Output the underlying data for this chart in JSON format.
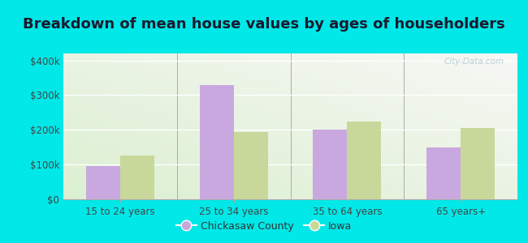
{
  "title": "Breakdown of mean house values by ages of householders",
  "categories": [
    "15 to 24 years",
    "25 to 34 years",
    "35 to 64 years",
    "65 years+"
  ],
  "chickasaw_values": [
    95000,
    330000,
    200000,
    150000
  ],
  "iowa_values": [
    125000,
    193000,
    225000,
    205000
  ],
  "chickasaw_color": "#c9a8e0",
  "iowa_color": "#c8d89a",
  "ylim": [
    0,
    420000
  ],
  "yticks": [
    0,
    100000,
    200000,
    300000,
    400000
  ],
  "ytick_labels": [
    "$0",
    "$100k",
    "$200k",
    "$300k",
    "$400k"
  ],
  "outer_background": "#00e8e8",
  "legend_labels": [
    "Chickasaw County",
    "Iowa"
  ],
  "watermark": "City-Data.com",
  "bar_width": 0.3,
  "title_fontsize": 13,
  "axis_fontsize": 8.5,
  "legend_fontsize": 9
}
